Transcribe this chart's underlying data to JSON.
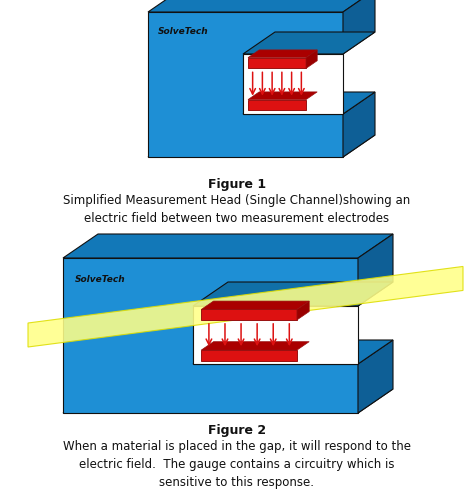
{
  "fig_width": 4.74,
  "fig_height": 5.04,
  "dpi": 100,
  "bg_color": "#ffffff",
  "blue_face": "#1E8FD5",
  "blue_top": "#1278B8",
  "blue_right": "#0E5F96",
  "blue_inner_top": "#1070A8",
  "red_color": "#DD1111",
  "red_dark": "#991111",
  "yellow_fill": "#FFFF88",
  "yellow_edge": "#DDDD00",
  "white": "#ffffff",
  "black": "#111111",
  "gap_white": "#FFFFFF",
  "gap_side": "#D8D8D8",
  "solvetech_text": "SolveTech",
  "fig1_label": "Figure 1",
  "fig1_sub": "Simplified Measurement Head (Single Channel)showing an\nelectric field between two measurement electrodes",
  "fig2_label": "Figure 2",
  "fig2_sub": "When a material is placed in the gap, it will respond to the\nelectric field.  The gauge contains a circuitry which is\nsensitive to this response.",
  "caption_fontsize": 8.5,
  "logo_fontsize": 6.5
}
